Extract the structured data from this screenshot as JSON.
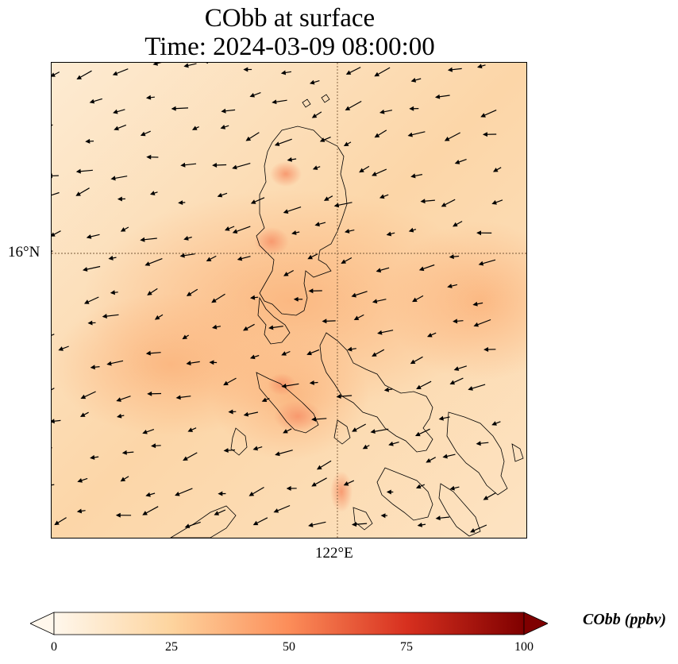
{
  "title": {
    "line1": "CObb at surface",
    "line2": "Time: 2024-03-09 08:00:00"
  },
  "map": {
    "lat_label": "16°N",
    "lon_label": "122°E",
    "gridlines": "dotted",
    "features": [
      "coastlines",
      "wind-vectors",
      "CObb-concentration-field"
    ]
  },
  "colorbar": {
    "label": "CObb (ppbv)",
    "ticks": [
      "0",
      "25",
      "50",
      "75",
      "100"
    ],
    "range": [
      0,
      100
    ],
    "colormap": "OrRd",
    "colors": [
      "#fff7ec",
      "#fdd49e",
      "#fc8d59",
      "#d7301f",
      "#7f0000"
    ],
    "extend": "both"
  }
}
